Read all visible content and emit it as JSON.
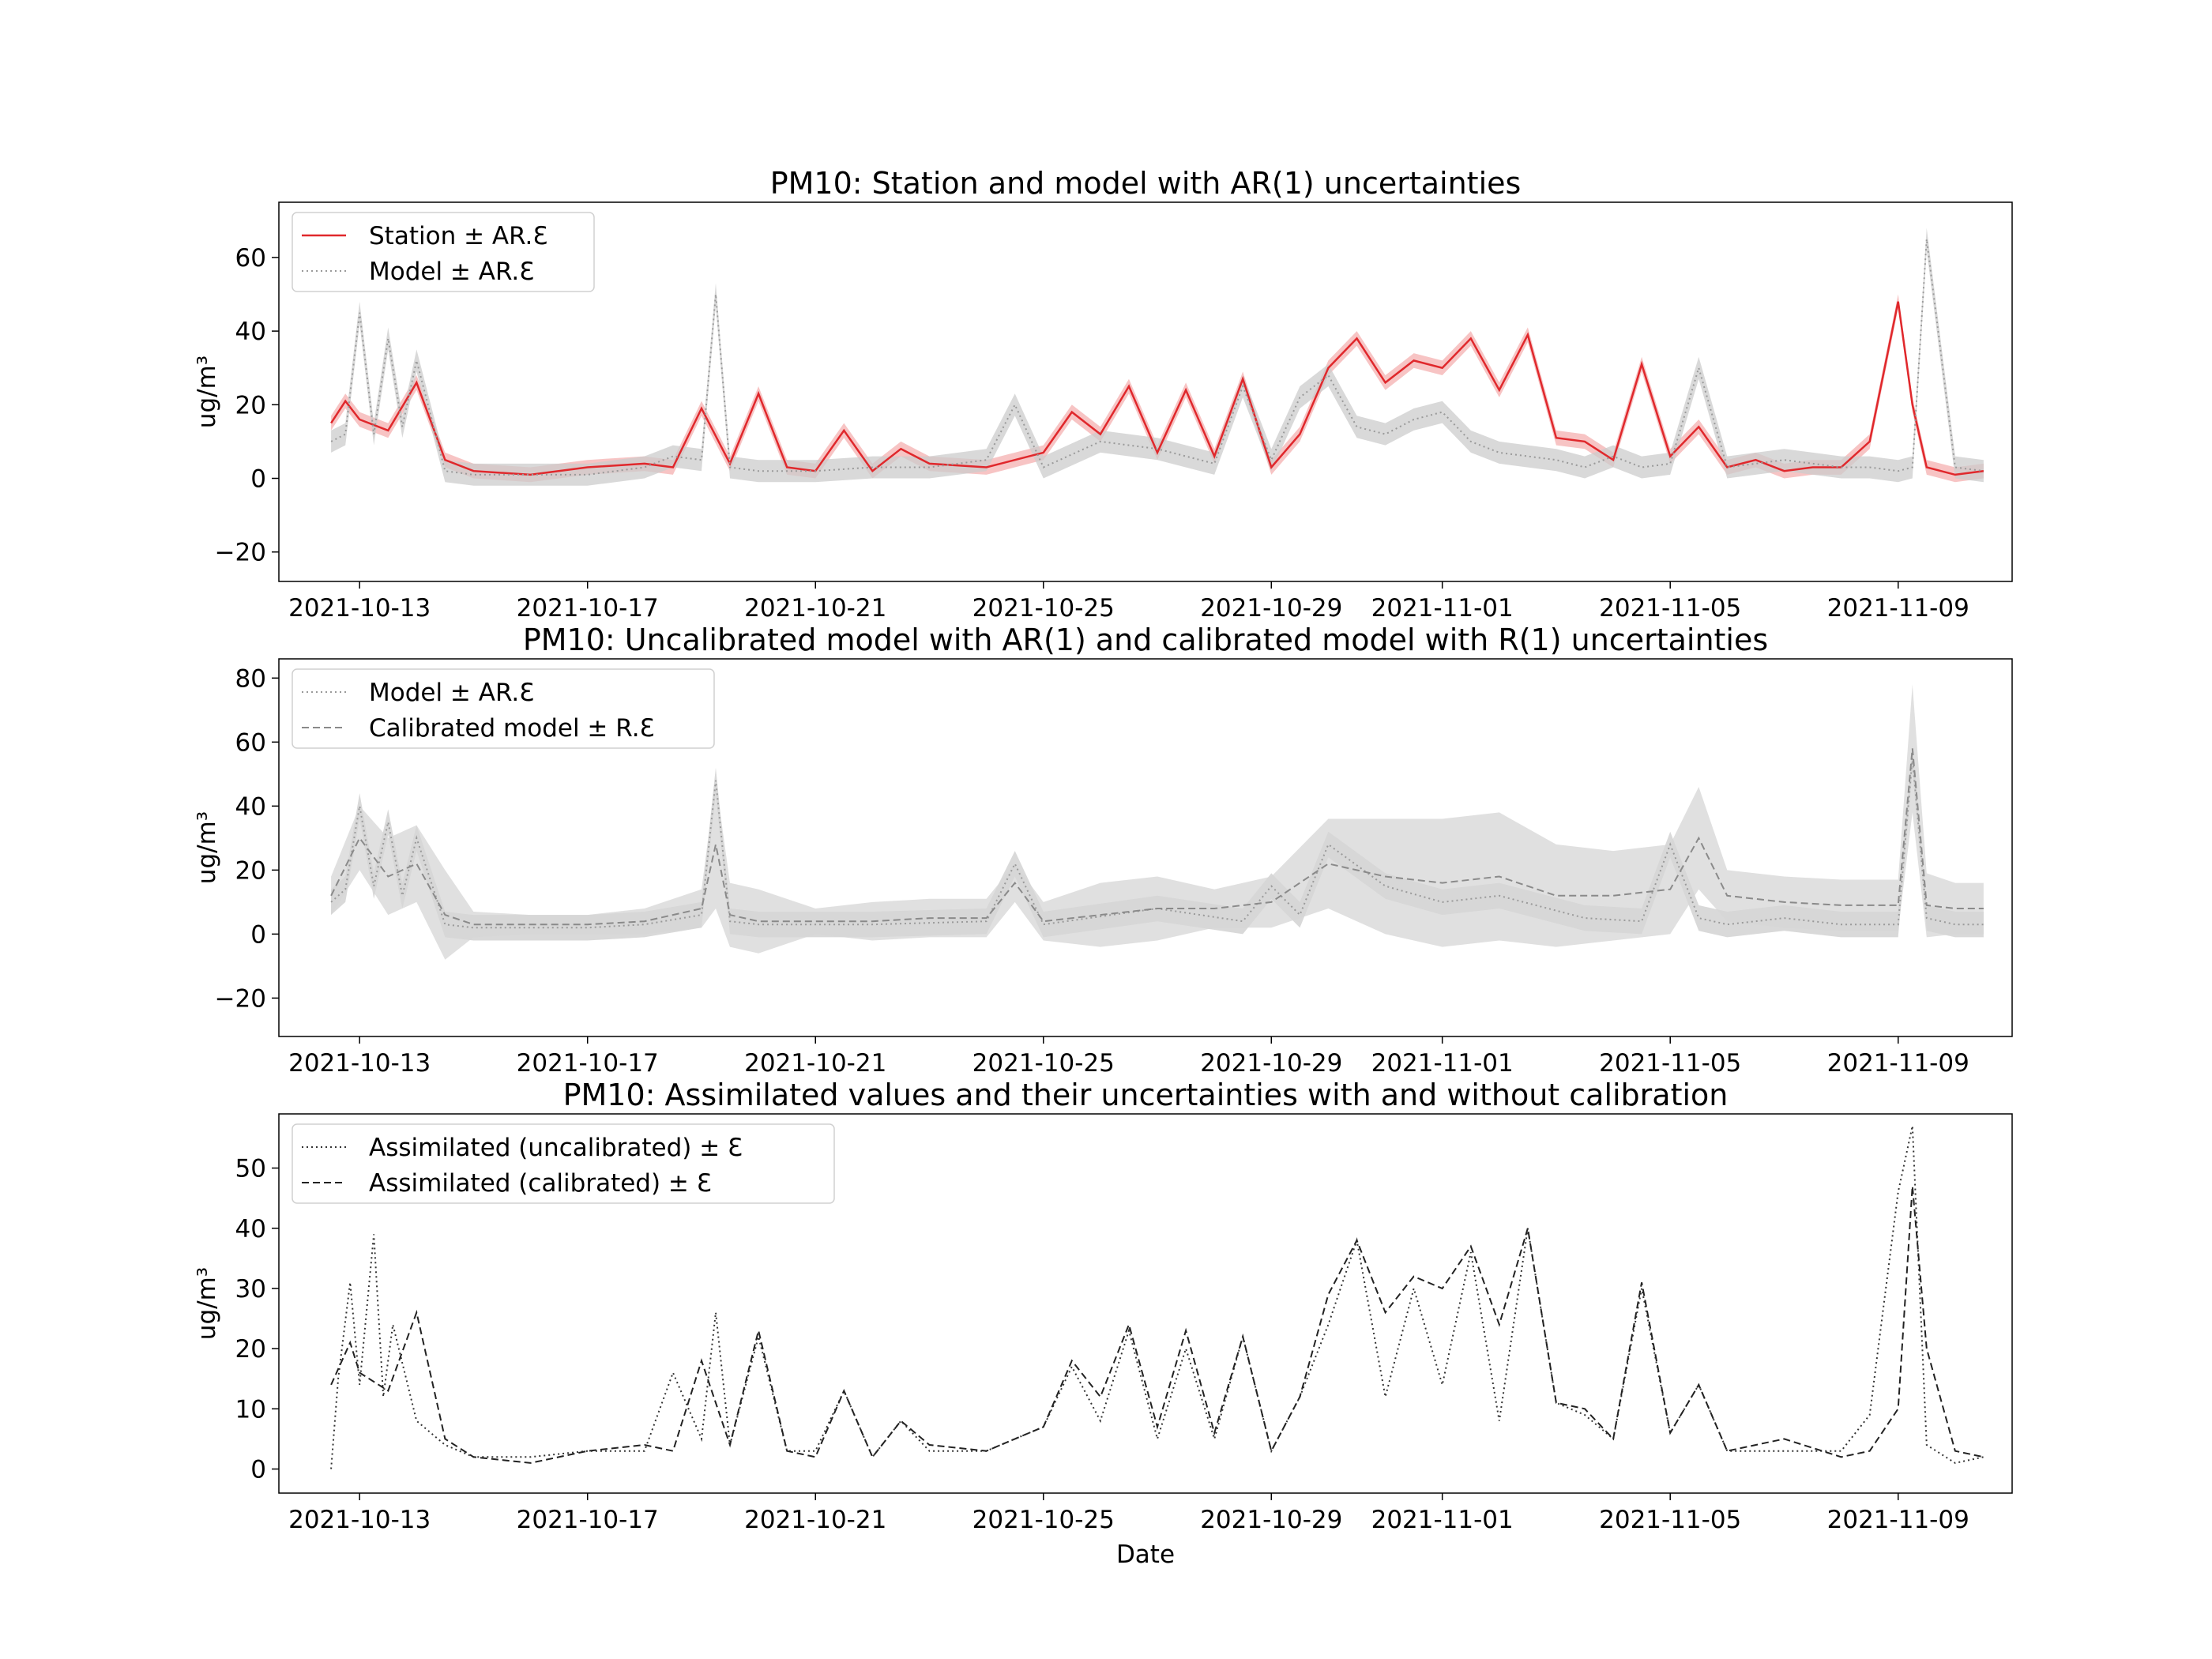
{
  "figure": {
    "xlabel": "Date",
    "x_ticks": [
      "2021-10-13",
      "2021-10-17",
      "2021-10-21",
      "2021-10-25",
      "2021-10-29",
      "2021-11-01",
      "2021-11-05",
      "2021-11-09"
    ]
  },
  "chart_data": [
    {
      "type": "line",
      "title": "PM10: Station and model with AR(1) uncertainties",
      "xlabel": "",
      "ylabel": "ug/m³",
      "xlim": [
        "2021-10-11T14:00",
        "2021-11-11T00:00"
      ],
      "ylim": [
        -28,
        75
      ],
      "yticks": [
        "−20",
        "0",
        "20",
        "40",
        "60"
      ],
      "ytick_values": [
        -20,
        0,
        20,
        40,
        60
      ],
      "grid": false,
      "legend": "top-left",
      "series": [
        {
          "name": "Station ± AR.Ɛ",
          "style": "solid",
          "color": "#e0282c",
          "band_color": "#f4b0b0",
          "x": [
            "2021-10-12T12:00",
            "2021-10-12T18:00",
            "2021-10-13T00:00",
            "2021-10-13T12:00",
            "2021-10-14T00:00",
            "2021-10-14T12:00",
            "2021-10-15T00:00",
            "2021-10-16T00:00",
            "2021-10-17T00:00",
            "2021-10-18T00:00",
            "2021-10-18T12:00",
            "2021-10-19T00:00",
            "2021-10-19T12:00",
            "2021-10-20T00:00",
            "2021-10-20T12:00",
            "2021-10-21T00:00",
            "2021-10-21T12:00",
            "2021-10-22T00:00",
            "2021-10-22T12:00",
            "2021-10-23T00:00",
            "2021-10-24T00:00",
            "2021-10-24T12:00",
            "2021-10-25T00:00",
            "2021-10-25T12:00",
            "2021-10-26T00:00",
            "2021-10-26T12:00",
            "2021-10-27T00:00",
            "2021-10-27T12:00",
            "2021-10-28T00:00",
            "2021-10-28T12:00",
            "2021-10-29T00:00",
            "2021-10-29T12:00",
            "2021-10-30T00:00",
            "2021-10-30T12:00",
            "2021-10-31T00:00",
            "2021-10-31T12:00",
            "2021-11-01T00:00",
            "2021-11-01T12:00",
            "2021-11-02T00:00",
            "2021-11-02T12:00",
            "2021-11-03T00:00",
            "2021-11-03T12:00",
            "2021-11-04T00:00",
            "2021-11-04T12:00",
            "2021-11-05T00:00",
            "2021-11-05T12:00",
            "2021-11-06T00:00",
            "2021-11-06T12:00",
            "2021-11-07T00:00",
            "2021-11-07T12:00",
            "2021-11-08T00:00",
            "2021-11-08T12:00",
            "2021-11-09T00:00",
            "2021-11-09T06:00",
            "2021-11-09T12:00",
            "2021-11-10T00:00",
            "2021-11-10T12:00"
          ],
          "values": [
            15,
            21,
            16,
            13,
            26,
            5,
            2,
            1,
            3,
            4,
            3,
            19,
            4,
            23,
            3,
            2,
            13,
            2,
            8,
            4,
            3,
            5,
            7,
            18,
            12,
            25,
            7,
            24,
            6,
            27,
            3,
            12,
            30,
            38,
            26,
            32,
            30,
            38,
            24,
            39,
            11,
            10,
            5,
            31,
            6,
            14,
            3,
            5,
            2,
            3,
            3,
            10,
            48,
            20,
            3,
            1,
            2
          ],
          "band_halfwidth": 2
        },
        {
          "name": "Model ± AR.Ɛ",
          "style": "dotted",
          "color": "#9a9a9a",
          "band_color": "#cccccc",
          "x": [
            "2021-10-12T12:00",
            "2021-10-12T18:00",
            "2021-10-13T00:00",
            "2021-10-13T06:00",
            "2021-10-13T12:00",
            "2021-10-13T18:00",
            "2021-10-14T00:00",
            "2021-10-14T12:00",
            "2021-10-15T00:00",
            "2021-10-16T00:00",
            "2021-10-17T00:00",
            "2021-10-18T00:00",
            "2021-10-18T12:00",
            "2021-10-19T00:00",
            "2021-10-19T06:00",
            "2021-10-19T12:00",
            "2021-10-20T00:00",
            "2021-10-21T00:00",
            "2021-10-22T00:00",
            "2021-10-23T00:00",
            "2021-10-24T00:00",
            "2021-10-24T12:00",
            "2021-10-25T00:00",
            "2021-10-26T00:00",
            "2021-10-27T00:00",
            "2021-10-28T00:00",
            "2021-10-28T12:00",
            "2021-10-29T00:00",
            "2021-10-29T12:00",
            "2021-10-30T00:00",
            "2021-10-30T12:00",
            "2021-10-31T00:00",
            "2021-10-31T12:00",
            "2021-11-01T00:00",
            "2021-11-01T12:00",
            "2021-11-02T00:00",
            "2021-11-03T00:00",
            "2021-11-03T12:00",
            "2021-11-04T00:00",
            "2021-11-04T12:00",
            "2021-11-05T00:00",
            "2021-11-05T12:00",
            "2021-11-06T00:00",
            "2021-11-07T00:00",
            "2021-11-08T00:00",
            "2021-11-08T12:00",
            "2021-11-09T00:00",
            "2021-11-09T06:00",
            "2021-11-09T12:00",
            "2021-11-10T00:00",
            "2021-11-10T12:00"
          ],
          "values": [
            10,
            12,
            45,
            12,
            38,
            14,
            32,
            2,
            1,
            1,
            1,
            3,
            6,
            5,
            50,
            3,
            2,
            2,
            3,
            3,
            5,
            20,
            3,
            10,
            8,
            4,
            25,
            5,
            22,
            28,
            14,
            12,
            16,
            18,
            10,
            7,
            5,
            3,
            6,
            3,
            4,
            30,
            3,
            5,
            3,
            3,
            2,
            3,
            65,
            3,
            2
          ],
          "band_halfwidth": 3
        }
      ]
    },
    {
      "type": "line",
      "title": "PM10: Uncalibrated model with AR(1) and calibrated model with R(1) uncertainties",
      "xlabel": "",
      "ylabel": "ug/m³",
      "xlim": [
        "2021-10-11T14:00",
        "2021-11-11T00:00"
      ],
      "ylim": [
        -32,
        86
      ],
      "yticks": [
        "−20",
        "0",
        "20",
        "40",
        "60",
        "80"
      ],
      "ytick_values": [
        -20,
        0,
        20,
        40,
        60,
        80
      ],
      "grid": false,
      "legend": "top-left",
      "series": [
        {
          "name": "Model ± AR.Ɛ",
          "style": "dotted",
          "color": "#9a9a9a",
          "band_color": "#cccccc",
          "x": [
            "2021-10-12T12:00",
            "2021-10-12T18:00",
            "2021-10-13T00:00",
            "2021-10-13T06:00",
            "2021-10-13T12:00",
            "2021-10-13T18:00",
            "2021-10-14T00:00",
            "2021-10-14T12:00",
            "2021-10-15T00:00",
            "2021-10-17T00:00",
            "2021-10-18T00:00",
            "2021-10-19T00:00",
            "2021-10-19T06:00",
            "2021-10-19T12:00",
            "2021-10-20T00:00",
            "2021-10-22T00:00",
            "2021-10-24T00:00",
            "2021-10-24T12:00",
            "2021-10-25T00:00",
            "2021-10-27T00:00",
            "2021-10-28T12:00",
            "2021-10-29T00:00",
            "2021-10-29T12:00",
            "2021-10-30T00:00",
            "2021-10-31T00:00",
            "2021-11-01T00:00",
            "2021-11-02T00:00",
            "2021-11-03T12:00",
            "2021-11-04T12:00",
            "2021-11-05T00:00",
            "2021-11-05T12:00",
            "2021-11-06T00:00",
            "2021-11-07T00:00",
            "2021-11-08T00:00",
            "2021-11-09T00:00",
            "2021-11-09T06:00",
            "2021-11-09T12:00",
            "2021-11-10T00:00",
            "2021-11-10T12:00"
          ],
          "values": [
            10,
            14,
            40,
            15,
            35,
            12,
            30,
            3,
            2,
            2,
            3,
            6,
            48,
            4,
            3,
            3,
            4,
            22,
            3,
            8,
            4,
            15,
            6,
            28,
            15,
            10,
            12,
            5,
            4,
            28,
            5,
            3,
            5,
            3,
            3,
            55,
            5,
            3,
            3
          ],
          "band_halfwidth": 4
        },
        {
          "name": "Calibrated model ± R.Ɛ",
          "style": "dashed",
          "color": "#8a8a8a",
          "band_color": "#d6d6d6",
          "x": [
            "2021-10-12T12:00",
            "2021-10-13T00:00",
            "2021-10-13T12:00",
            "2021-10-14T00:00",
            "2021-10-14T12:00",
            "2021-10-15T00:00",
            "2021-10-16T00:00",
            "2021-10-17T00:00",
            "2021-10-18T00:00",
            "2021-10-19T00:00",
            "2021-10-19T06:00",
            "2021-10-19T12:00",
            "2021-10-20T00:00",
            "2021-10-21T00:00",
            "2021-10-22T00:00",
            "2021-10-23T00:00",
            "2021-10-24T00:00",
            "2021-10-24T12:00",
            "2021-10-25T00:00",
            "2021-10-26T00:00",
            "2021-10-27T00:00",
            "2021-10-28T00:00",
            "2021-10-29T00:00",
            "2021-10-30T00:00",
            "2021-10-31T00:00",
            "2021-11-01T00:00",
            "2021-11-02T00:00",
            "2021-11-03T00:00",
            "2021-11-04T00:00",
            "2021-11-05T00:00",
            "2021-11-05T12:00",
            "2021-11-06T00:00",
            "2021-11-07T00:00",
            "2021-11-08T00:00",
            "2021-11-09T00:00",
            "2021-11-09T06:00",
            "2021-11-09T12:00",
            "2021-11-10T00:00",
            "2021-11-10T12:00"
          ],
          "values": [
            12,
            30,
            18,
            22,
            6,
            3,
            3,
            3,
            4,
            8,
            28,
            6,
            4,
            4,
            4,
            5,
            5,
            16,
            4,
            6,
            8,
            8,
            10,
            22,
            18,
            16,
            18,
            12,
            12,
            14,
            30,
            12,
            10,
            9,
            9,
            58,
            9,
            8,
            8
          ],
          "band_halfwidth": [
            6,
            10,
            12,
            12,
            14,
            4,
            3,
            3,
            4,
            6,
            20,
            10,
            10,
            4,
            6,
            6,
            6,
            6,
            6,
            10,
            10,
            6,
            8,
            14,
            18,
            20,
            20,
            16,
            14,
            14,
            16,
            8,
            8,
            8,
            8,
            20,
            10,
            8,
            8
          ]
        }
      ]
    },
    {
      "type": "line",
      "title": "PM10: Assimilated values and their uncertainties with and without calibration",
      "xlabel": "Date",
      "ylabel": "ug/m³",
      "xlim": [
        "2021-10-11T14:00",
        "2021-11-11T00:00"
      ],
      "ylim": [
        -4,
        59
      ],
      "yticks": [
        "0",
        "10",
        "20",
        "30",
        "40",
        "50"
      ],
      "ytick_values": [
        0,
        10,
        20,
        30,
        40,
        50
      ],
      "grid": false,
      "legend": "top-left",
      "series": [
        {
          "name": "Assimilated (uncalibrated) ± Ɛ",
          "style": "dotted",
          "color": "#333333",
          "x": [
            "2021-10-12T12:00",
            "2021-10-12T15:00",
            "2021-10-12T20:00",
            "2021-10-13T00:00",
            "2021-10-13T06:00",
            "2021-10-13T10:00",
            "2021-10-13T14:00",
            "2021-10-14T00:00",
            "2021-10-14T12:00",
            "2021-10-15T00:00",
            "2021-10-16T00:00",
            "2021-10-17T00:00",
            "2021-10-18T00:00",
            "2021-10-18T12:00",
            "2021-10-19T00:00",
            "2021-10-19T06:00",
            "2021-10-19T12:00",
            "2021-10-20T00:00",
            "2021-10-20T12:00",
            "2021-10-21T00:00",
            "2021-10-21T12:00",
            "2021-10-22T00:00",
            "2021-10-22T12:00",
            "2021-10-23T00:00",
            "2021-10-24T00:00",
            "2021-10-24T12:00",
            "2021-10-25T00:00",
            "2021-10-25T12:00",
            "2021-10-26T00:00",
            "2021-10-26T12:00",
            "2021-10-27T00:00",
            "2021-10-27T12:00",
            "2021-10-28T00:00",
            "2021-10-28T12:00",
            "2021-10-29T00:00",
            "2021-10-29T12:00",
            "2021-10-30T00:00",
            "2021-10-30T12:00",
            "2021-10-31T00:00",
            "2021-10-31T12:00",
            "2021-11-01T00:00",
            "2021-11-01T12:00",
            "2021-11-02T00:00",
            "2021-11-02T12:00",
            "2021-11-03T00:00",
            "2021-11-03T12:00",
            "2021-11-04T00:00",
            "2021-11-04T12:00",
            "2021-11-05T00:00",
            "2021-11-05T12:00",
            "2021-11-06T00:00",
            "2021-11-07T00:00",
            "2021-11-08T00:00",
            "2021-11-08T12:00",
            "2021-11-09T00:00",
            "2021-11-09T06:00",
            "2021-11-09T12:00",
            "2021-11-10T00:00",
            "2021-11-10T12:00"
          ],
          "values": [
            0,
            15,
            31,
            14,
            39,
            12,
            24,
            8,
            4,
            2,
            2,
            3,
            3,
            16,
            5,
            26,
            4,
            22,
            3,
            3,
            13,
            2,
            8,
            3,
            3,
            5,
            7,
            17,
            8,
            23,
            5,
            20,
            5,
            22,
            3,
            12,
            24,
            38,
            12,
            30,
            14,
            36,
            8,
            40,
            11,
            9,
            5,
            30,
            6,
            14,
            3,
            3,
            3,
            9,
            46,
            57,
            4,
            1,
            2
          ]
        },
        {
          "name": "Assimilated (calibrated) ± Ɛ",
          "style": "dashed",
          "color": "#222222",
          "x": [
            "2021-10-12T12:00",
            "2021-10-12T20:00",
            "2021-10-13T00:00",
            "2021-10-13T12:00",
            "2021-10-14T00:00",
            "2021-10-14T12:00",
            "2021-10-15T00:00",
            "2021-10-16T00:00",
            "2021-10-17T00:00",
            "2021-10-18T00:00",
            "2021-10-18T12:00",
            "2021-10-19T00:00",
            "2021-10-19T12:00",
            "2021-10-20T00:00",
            "2021-10-20T12:00",
            "2021-10-21T00:00",
            "2021-10-21T12:00",
            "2021-10-22T00:00",
            "2021-10-22T12:00",
            "2021-10-23T00:00",
            "2021-10-24T00:00",
            "2021-10-24T12:00",
            "2021-10-25T00:00",
            "2021-10-25T12:00",
            "2021-10-26T00:00",
            "2021-10-26T12:00",
            "2021-10-27T00:00",
            "2021-10-27T12:00",
            "2021-10-28T00:00",
            "2021-10-28T12:00",
            "2021-10-29T00:00",
            "2021-10-29T12:00",
            "2021-10-30T00:00",
            "2021-10-30T12:00",
            "2021-10-31T00:00",
            "2021-10-31T12:00",
            "2021-11-01T00:00",
            "2021-11-01T12:00",
            "2021-11-02T00:00",
            "2021-11-02T12:00",
            "2021-11-03T00:00",
            "2021-11-03T12:00",
            "2021-11-04T00:00",
            "2021-11-04T12:00",
            "2021-11-05T00:00",
            "2021-11-05T12:00",
            "2021-11-06T00:00",
            "2021-11-07T00:00",
            "2021-11-08T00:00",
            "2021-11-08T12:00",
            "2021-11-09T00:00",
            "2021-11-09T06:00",
            "2021-11-09T12:00",
            "2021-11-10T00:00",
            "2021-11-10T12:00"
          ],
          "values": [
            14,
            21,
            16,
            13,
            26,
            5,
            2,
            1,
            3,
            4,
            3,
            18,
            4,
            23,
            3,
            2,
            13,
            2,
            8,
            4,
            3,
            5,
            7,
            18,
            12,
            24,
            7,
            23,
            6,
            22,
            3,
            12,
            29,
            38,
            26,
            32,
            30,
            37,
            24,
            40,
            11,
            10,
            5,
            31,
            6,
            14,
            3,
            5,
            2,
            3,
            10,
            47,
            20,
            3,
            2
          ]
        }
      ]
    }
  ]
}
